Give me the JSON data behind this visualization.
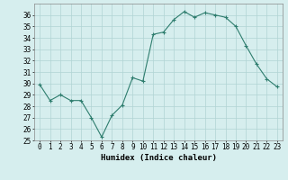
{
  "x": [
    0,
    1,
    2,
    3,
    4,
    5,
    6,
    7,
    8,
    9,
    10,
    11,
    12,
    13,
    14,
    15,
    16,
    17,
    18,
    19,
    20,
    21,
    22,
    23
  ],
  "y": [
    29.9,
    28.5,
    29.0,
    28.5,
    28.5,
    27.0,
    25.3,
    27.2,
    28.1,
    30.5,
    30.2,
    34.3,
    34.5,
    35.6,
    36.3,
    35.8,
    36.2,
    36.0,
    35.8,
    35.0,
    33.3,
    31.7,
    30.4,
    29.7
  ],
  "line_color": "#2e7d6e",
  "marker": "+",
  "bg_color": "#d6eeee",
  "grid_color": "#b0d4d4",
  "xlabel": "Humidex (Indice chaleur)",
  "ylim": [
    25,
    37
  ],
  "xlim": [
    -0.5,
    23.5
  ],
  "yticks": [
    25,
    26,
    27,
    28,
    29,
    30,
    31,
    32,
    33,
    34,
    35,
    36
  ],
  "xticks": [
    0,
    1,
    2,
    3,
    4,
    5,
    6,
    7,
    8,
    9,
    10,
    11,
    12,
    13,
    14,
    15,
    16,
    17,
    18,
    19,
    20,
    21,
    22,
    23
  ],
  "xtick_labels": [
    "0",
    "1",
    "2",
    "3",
    "4",
    "5",
    "6",
    "7",
    "8",
    "9",
    "10",
    "11",
    "12",
    "13",
    "14",
    "15",
    "16",
    "17",
    "18",
    "19",
    "20",
    "21",
    "22",
    "23"
  ],
  "label_fontsize": 6.5,
  "tick_fontsize": 5.5
}
